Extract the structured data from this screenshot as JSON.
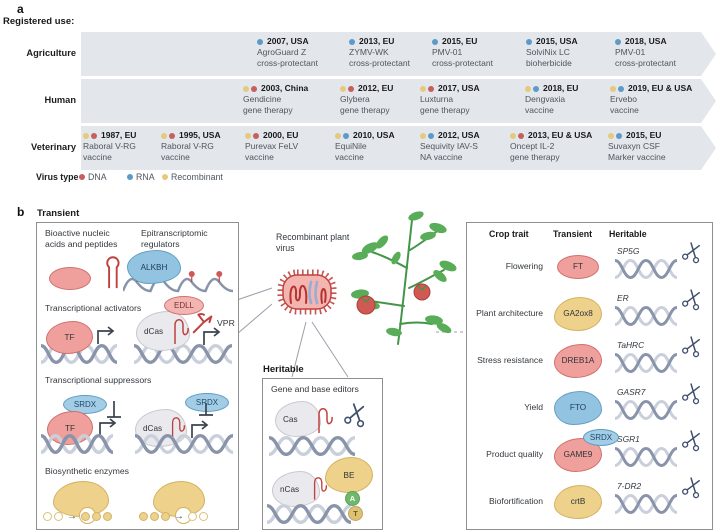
{
  "colors": {
    "dna_virus": "#c4605e",
    "rna_virus": "#5b9ac9",
    "recombinant_virus": "#e5c97c",
    "timeline_band": "#e3e6ea",
    "red_protein": "#f0a09c",
    "blue_protein": "#92c4e2",
    "yellow_protein": "#eed28b",
    "gray_protein": "#eaeaee",
    "dna_strand_dark": "#8994ab",
    "dna_strand_light": "#c9cfdb"
  },
  "panel_a": {
    "label": "a",
    "title": "Registered use:",
    "rows": [
      {
        "label": "Agriculture",
        "entries": [
          {
            "dots": [
              "rna_virus"
            ],
            "year": "2007, USA",
            "lines": [
              "AgroGuard Z",
              "cross-protectant"
            ]
          },
          {
            "dots": [
              "rna_virus"
            ],
            "year": "2013, EU",
            "lines": [
              "ZYMV-WK",
              "cross-protectant"
            ]
          },
          {
            "dots": [
              "rna_virus"
            ],
            "year": "2015, EU",
            "lines": [
              "PMV-01",
              "cross-protectant"
            ]
          },
          {
            "dots": [
              "rna_virus"
            ],
            "year": "2015, USA",
            "lines": [
              "SolviNix LC",
              "bioherbicide"
            ]
          },
          {
            "dots": [
              "rna_virus"
            ],
            "year": "2018, USA",
            "lines": [
              "PMV-01",
              "cross-protectant"
            ]
          }
        ]
      },
      {
        "label": "Human",
        "entries": [
          {
            "dots": [
              "recombinant_virus",
              "dna_virus"
            ],
            "year": "2003, China",
            "lines": [
              "Gendicine",
              "gene therapy"
            ]
          },
          {
            "dots": [
              "recombinant_virus",
              "dna_virus"
            ],
            "year": "2012, EU",
            "lines": [
              "Glybera",
              "gene therapy"
            ]
          },
          {
            "dots": [
              "recombinant_virus",
              "dna_virus"
            ],
            "year": "2017, USA",
            "lines": [
              "Luxturna",
              "gene therapy"
            ]
          },
          {
            "dots": [
              "recombinant_virus",
              "rna_virus"
            ],
            "year": "2018, EU",
            "lines": [
              "Dengvaxia",
              "vaccine"
            ]
          },
          {
            "dots": [
              "recombinant_virus",
              "rna_virus"
            ],
            "year": "2019, EU & USA",
            "lines": [
              "Ervebo",
              "vaccine"
            ]
          }
        ]
      },
      {
        "label": "Veterinary",
        "entries": [
          {
            "dots": [
              "recombinant_virus",
              "dna_virus"
            ],
            "year": "1987, EU",
            "lines": [
              "Raboral V-RG",
              "vaccine"
            ]
          },
          {
            "dots": [
              "recombinant_virus",
              "dna_virus"
            ],
            "year": "1995, USA",
            "lines": [
              "Raboral V-RG",
              "vaccine"
            ]
          },
          {
            "dots": [
              "recombinant_virus",
              "dna_virus"
            ],
            "year": "2000, EU",
            "lines": [
              "Purevax FeLV",
              "vaccine"
            ]
          },
          {
            "dots": [
              "recombinant_virus",
              "rna_virus"
            ],
            "year": "2010, USA",
            "lines": [
              "EquiNile",
              "vaccine"
            ]
          },
          {
            "dots": [
              "recombinant_virus",
              "rna_virus"
            ],
            "year": "2012, USA",
            "lines": [
              "Sequivity IAV-S",
              "NA vaccine"
            ]
          },
          {
            "dots": [
              "recombinant_virus",
              "dna_virus"
            ],
            "year": "2013, EU & USA",
            "lines": [
              "Oncept IL-2",
              "gene therapy"
            ]
          },
          {
            "dots": [
              "recombinant_virus",
              "rna_virus"
            ],
            "year": "2015, EU",
            "lines": [
              "Suvaxyn CSF",
              "Marker vaccine"
            ]
          }
        ]
      }
    ],
    "legend": {
      "label": "Virus type",
      "items": [
        {
          "name": "DNA",
          "color_key": "dna_virus"
        },
        {
          "name": "RNA",
          "color_key": "rna_virus"
        },
        {
          "name": "Recombinant",
          "color_key": "recombinant_virus"
        }
      ]
    }
  },
  "panel_b": {
    "label": "b",
    "transient_box": {
      "title": "Transient",
      "section1_left": "Bioactive nucleic\nacids and peptides",
      "section1_right": "Epitranscriptomic\nregulators",
      "alkbh_label": "ALKBH",
      "section2": "Transcriptional activators",
      "tf_label": "TF",
      "dcas_label": "dCas",
      "edll_label": "EDLL",
      "vpr_label": "VPR",
      "section3": "Transcriptional suppressors",
      "srdx_label": "SRDX",
      "section4": "Biosynthetic enzymes"
    },
    "virus_label": "Recombinant plant virus",
    "heritable_box": {
      "title": "Heritable",
      "subtitle": "Gene and base editors",
      "cas_label": "Cas",
      "ncas_label": "nCas",
      "be_label": "BE",
      "base_a": "A",
      "base_t": "T"
    },
    "crop_table": {
      "headers": [
        "Crop trait",
        "Transient",
        "Heritable"
      ],
      "rows": [
        {
          "trait": "Flowering",
          "transient_label": "FT",
          "transient_color": "red",
          "transient_shape": "oval",
          "heritable_gene": "SP5G"
        },
        {
          "trait": "Plant architecture",
          "transient_label": "GA2ox8",
          "transient_color": "yellow",
          "transient_shape": "blob",
          "heritable_gene": "ER"
        },
        {
          "trait": "Stress resistance",
          "transient_label": "DREB1A",
          "transient_color": "red",
          "transient_shape": "blob",
          "heritable_gene": "TaHRC"
        },
        {
          "trait": "Yield",
          "transient_label": "FTO",
          "transient_color": "blue",
          "transient_shape": "blob",
          "heritable_gene": "GASR7"
        },
        {
          "trait": "Product quality",
          "transient_label": "GAME9",
          "transient_color": "red",
          "transient_shape": "blob",
          "transient_extra": "SRDX",
          "heritable_gene": "SGR1"
        },
        {
          "trait": "Biofortification",
          "transient_label": "crtB",
          "transient_color": "yellow",
          "transient_shape": "blob",
          "heritable_gene": "7-DR2"
        }
      ]
    }
  }
}
